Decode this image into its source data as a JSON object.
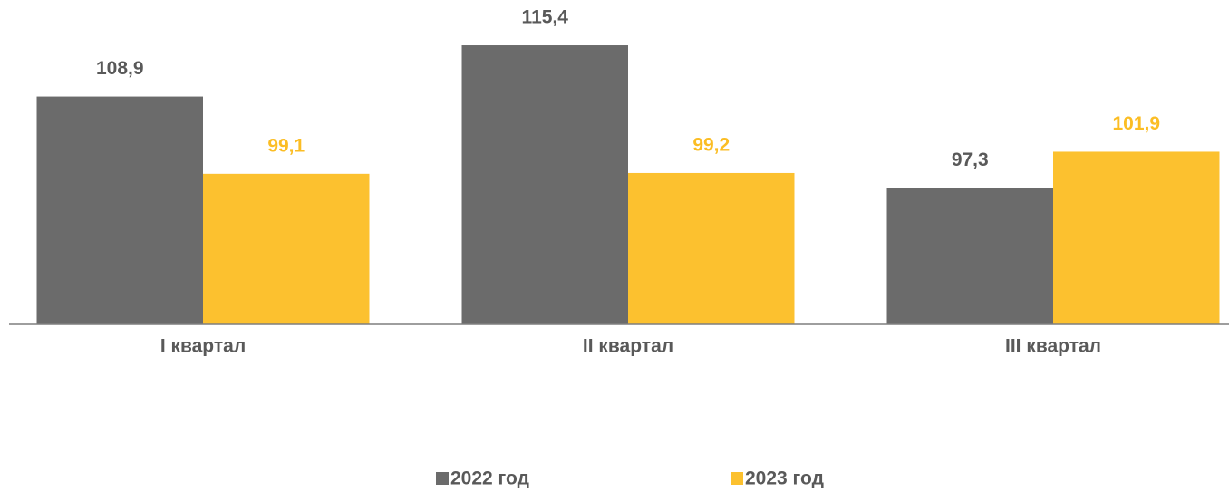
{
  "chart_data": {
    "type": "bar",
    "categories": [
      "I квартал",
      "II квартал",
      "III квартал"
    ],
    "series": [
      {
        "name": "2022 год",
        "color": "#6b6b6b",
        "label_color": "#595959",
        "values": [
          108.9,
          115.4,
          97.3
        ],
        "value_labels": [
          "108,9",
          "115,4",
          "97,3"
        ]
      },
      {
        "name": "2023 год",
        "color": "#fcc12f",
        "label_color": "#fbbd24",
        "values": [
          99.1,
          99.2,
          101.9
        ],
        "value_labels": [
          "99,1",
          "99,2",
          "101,9"
        ]
      }
    ],
    "ylim": [
      80,
      120
    ],
    "legend": "bottom"
  }
}
